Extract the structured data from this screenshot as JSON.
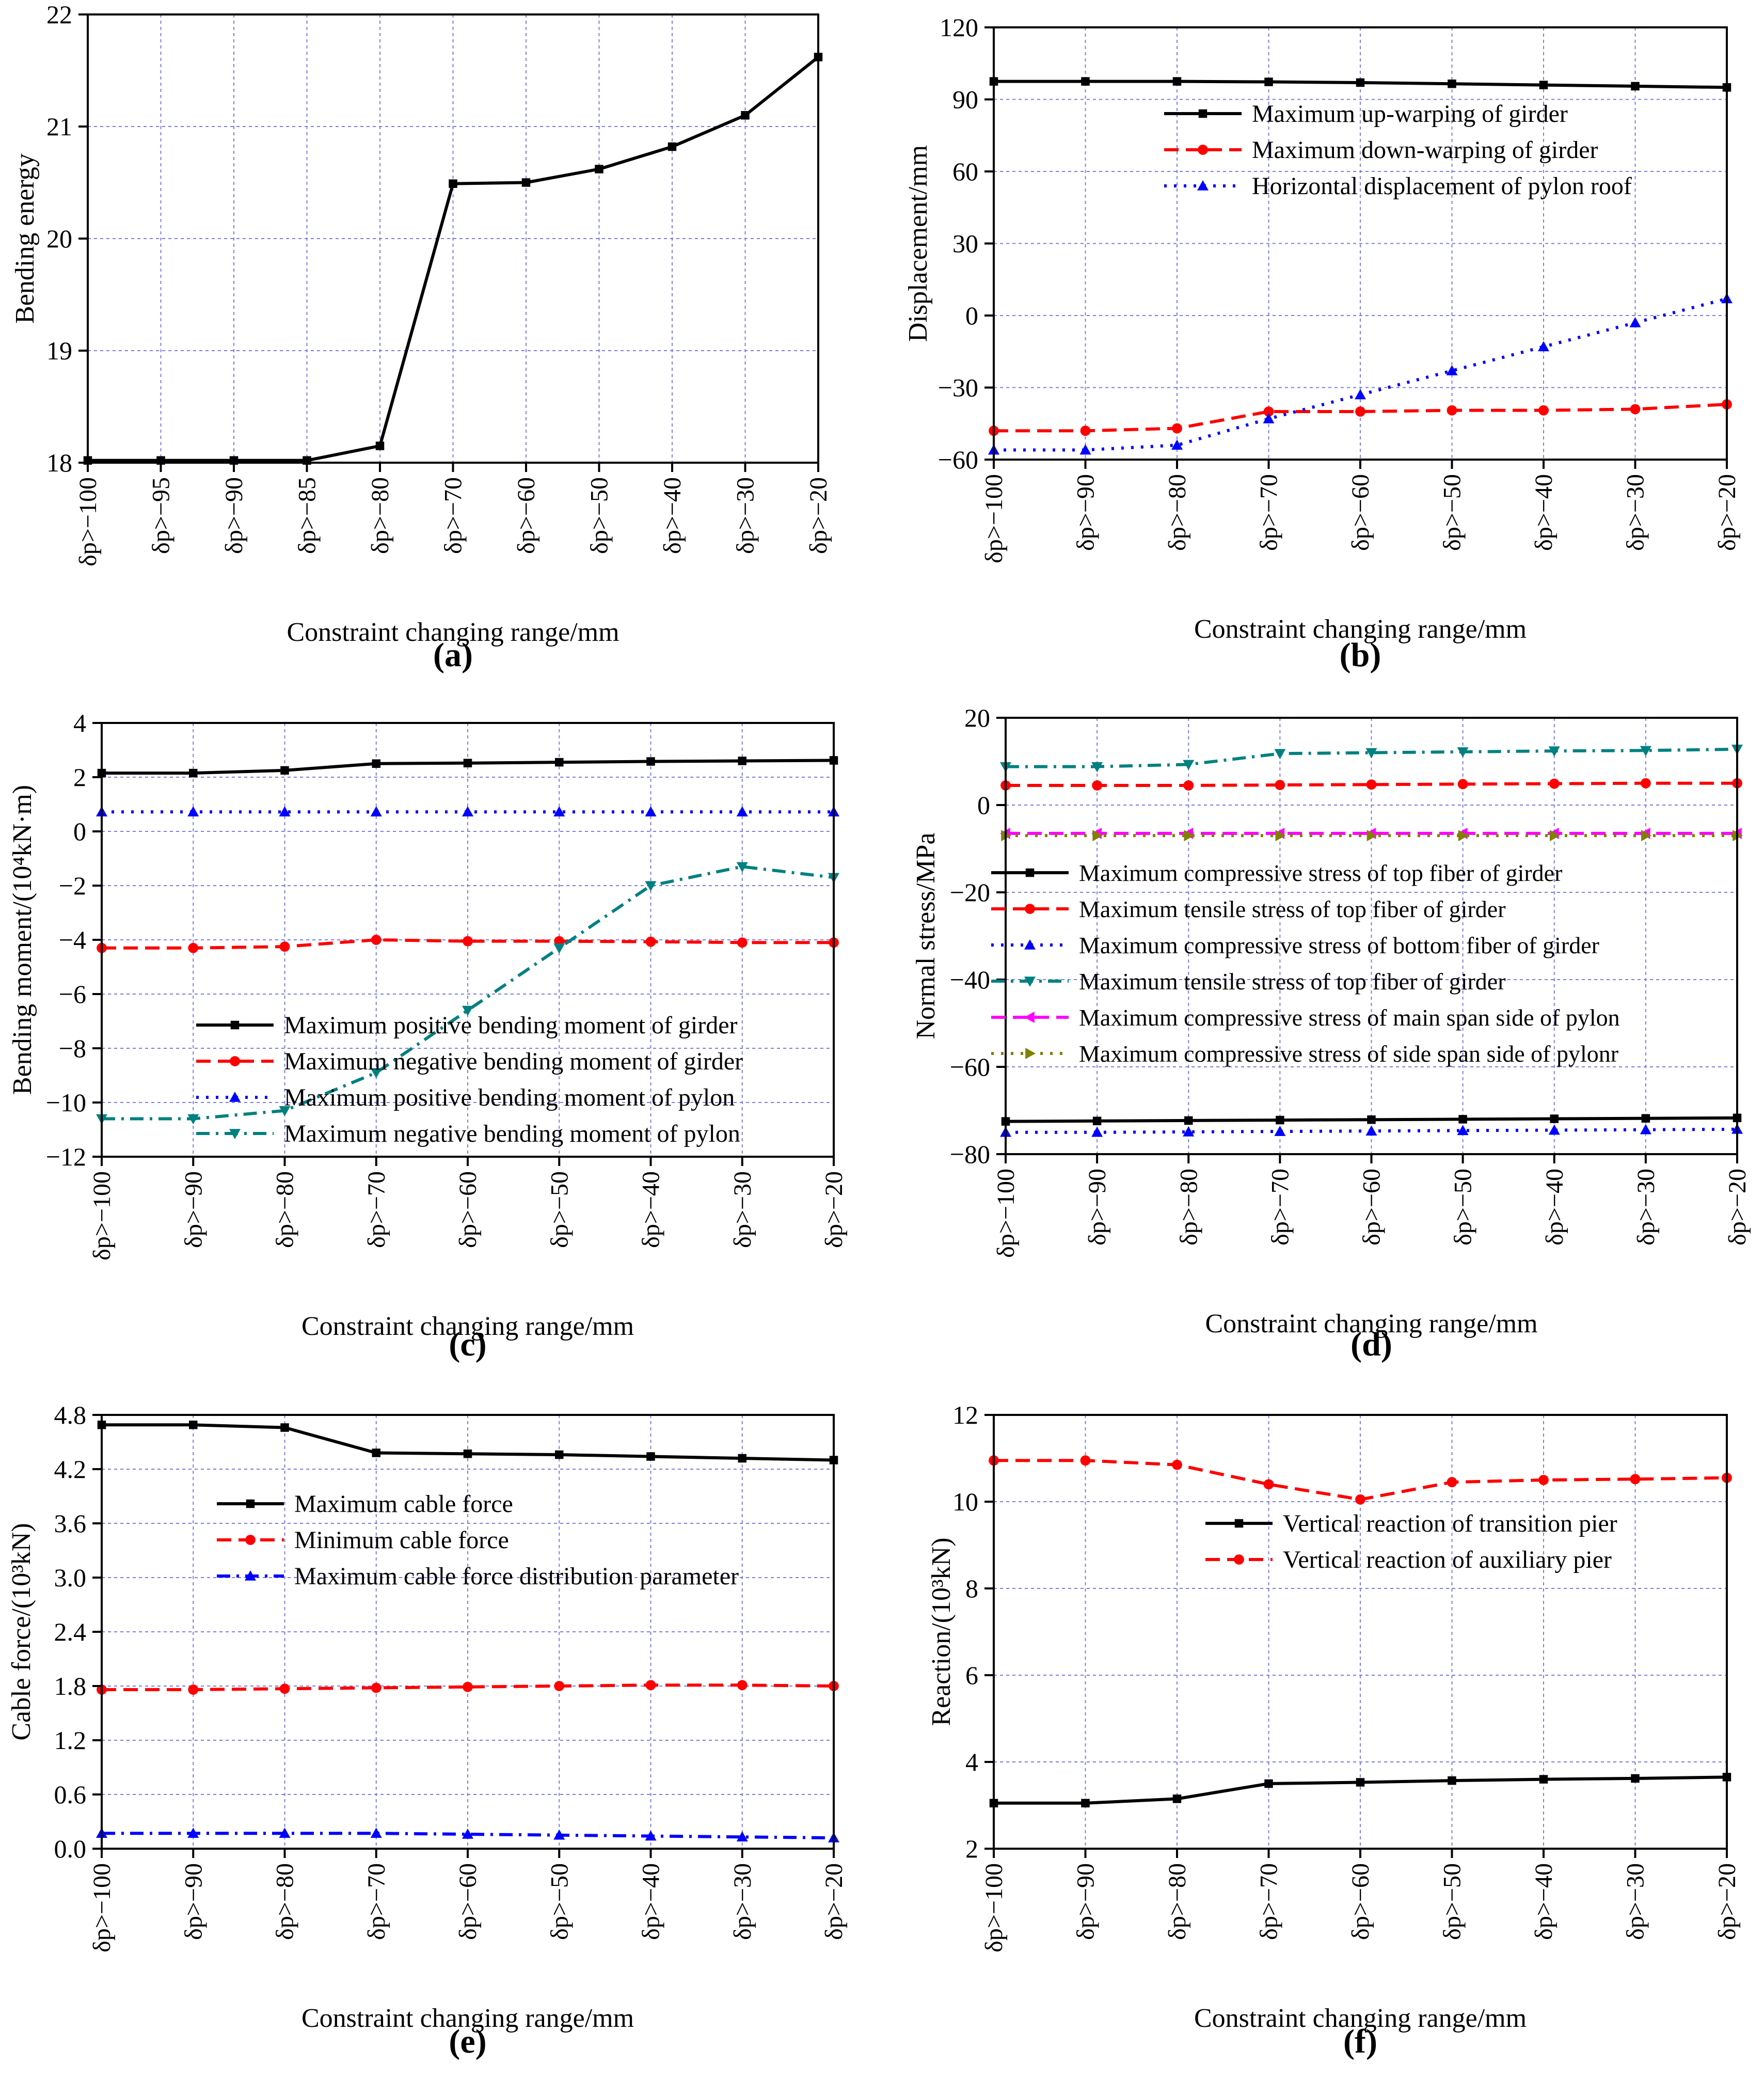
{
  "figure": {
    "panel_labels": [
      "(a)",
      "(b)",
      "(c)",
      "(d)",
      "(e)",
      "(f)"
    ]
  },
  "chart_data": [
    {
      "type": "line",
      "panel": "(a)",
      "xlabel": "Constraint changing range/mm",
      "ylabel": "Bending energy",
      "categories": [
        "δp>−100",
        "δp>−95",
        "δp>−90",
        "δp>−85",
        "δp>−80",
        "δp>−70",
        "δp>−60",
        "δp>−50",
        "δp>−40",
        "δp>−30",
        "δp>−20"
      ],
      "ylim": [
        18,
        22
      ],
      "yticks": [
        18,
        19,
        20,
        21,
        22
      ],
      "yticklabels": [
        "18",
        "19",
        "20",
        "21",
        "22"
      ],
      "grid": true,
      "legend": "none",
      "series": [
        {
          "name": "",
          "color": "#000000",
          "dash": "solid",
          "marker": "square",
          "values": [
            18.02,
            18.02,
            18.02,
            18.02,
            18.15,
            20.49,
            20.5,
            20.62,
            20.82,
            21.1,
            21.62
          ]
        }
      ]
    },
    {
      "type": "line",
      "panel": "(b)",
      "xlabel": "Constraint changing range/mm",
      "ylabel": "Displacement/mm",
      "categories": [
        "δp>−100",
        "δp>−90",
        "δp>−80",
        "δp>−70",
        "δp>−60",
        "δp>−50",
        "δp>−40",
        "δp>−30",
        "δp>−20"
      ],
      "ylim": [
        -60,
        120
      ],
      "yticks": [
        -60,
        -30,
        0,
        30,
        60,
        90,
        120
      ],
      "yticklabels": [
        "−60",
        "−30",
        "0",
        "30",
        "60",
        "90",
        "120"
      ],
      "grid": true,
      "legend": "top-right",
      "series": [
        {
          "name": "Maximum up-warping of girder",
          "color": "#000000",
          "dash": "solid",
          "marker": "square",
          "values": [
            97.5,
            97.5,
            97.5,
            97.3,
            97.0,
            96.5,
            96.0,
            95.5,
            95.0
          ]
        },
        {
          "name": "Maximum down-warping of girder",
          "color": "#ff0000",
          "dash": "dashed",
          "marker": "circle",
          "values": [
            -48,
            -48,
            -47,
            -40,
            -40,
            -39.5,
            -39.5,
            -39,
            -37
          ]
        },
        {
          "name": "Horizontal displacement of pylon roof",
          "color": "#0000ff",
          "dash": "dotted",
          "marker": "triangle-up",
          "values": [
            -56,
            -56,
            -54,
            -43,
            -33,
            -23,
            -13,
            -3,
            7
          ]
        }
      ]
    },
    {
      "type": "line",
      "panel": "(c)",
      "xlabel": "Constraint changing range/mm",
      "ylabel": "Bending moment/(10⁴kN·m)",
      "categories": [
        "δp>−100",
        "δp>−90",
        "δp>−80",
        "δp>−70",
        "δp>−60",
        "δp>−50",
        "δp>−40",
        "δp>−30",
        "δp>−20"
      ],
      "ylim": [
        -12,
        4
      ],
      "yticks": [
        -12,
        -10,
        -8,
        -6,
        -4,
        -2,
        0,
        2,
        4
      ],
      "yticklabels": [
        "−12",
        "−10",
        "−8",
        "−6",
        "−4",
        "−2",
        "0",
        "2",
        "4"
      ],
      "grid": true,
      "legend": "bottom-right",
      "series": [
        {
          "name": "Maximum positive bending moment of girder",
          "color": "#000000",
          "dash": "solid",
          "marker": "square",
          "values": [
            2.15,
            2.15,
            2.25,
            2.5,
            2.52,
            2.55,
            2.58,
            2.6,
            2.62
          ]
        },
        {
          "name": "Maximum negative bending moment of girder",
          "color": "#ff0000",
          "dash": "dashed",
          "marker": "circle",
          "values": [
            -4.3,
            -4.3,
            -4.25,
            -4.0,
            -4.05,
            -4.05,
            -4.07,
            -4.1,
            -4.1
          ]
        },
        {
          "name": "Maximum positive bending moment of pylon",
          "color": "#0000ff",
          "dash": "dotted",
          "marker": "triangle-up",
          "values": [
            0.72,
            0.72,
            0.72,
            0.72,
            0.72,
            0.72,
            0.72,
            0.72,
            0.72
          ]
        },
        {
          "name": "Maximum negative bending moment of pylon",
          "color": "#008080",
          "dash": "dashdot",
          "marker": "triangle-down",
          "values": [
            -10.6,
            -10.6,
            -10.3,
            -8.9,
            -6.6,
            -4.3,
            -2.0,
            -1.3,
            -1.7
          ]
        }
      ]
    },
    {
      "type": "line",
      "panel": "(d)",
      "xlabel": "Constraint changing range/mm",
      "ylabel": "Normal stress/MPa",
      "categories": [
        "δp>−100",
        "δp>−90",
        "δp>−80",
        "δp>−70",
        "δp>−60",
        "δp>−50",
        "δp>−40",
        "δp>−30",
        "δp>−20"
      ],
      "ylim": [
        -80,
        20
      ],
      "yticks": [
        -80,
        -60,
        -40,
        -20,
        0,
        20
      ],
      "yticklabels": [
        "−80",
        "−60",
        "−40",
        "−20",
        "0",
        "20"
      ],
      "grid": true,
      "legend": "center-right",
      "series": [
        {
          "name": "Maximum compressive stress of top fiber of girder",
          "color": "#000000",
          "dash": "solid",
          "marker": "square",
          "values": [
            -72.5,
            -72.4,
            -72.3,
            -72.2,
            -72.1,
            -72.0,
            -71.9,
            -71.8,
            -71.7
          ]
        },
        {
          "name": "Maximum tensile stress of top fiber of girder",
          "color": "#ff0000",
          "dash": "dashed",
          "marker": "circle",
          "values": [
            4.5,
            4.5,
            4.5,
            4.6,
            4.7,
            4.8,
            4.9,
            5.0,
            5.0
          ]
        },
        {
          "name": "Maximum compressive stress of bottom fiber of girder",
          "color": "#0000ff",
          "dash": "dotted",
          "marker": "triangle-up",
          "values": [
            -75.0,
            -75.0,
            -74.9,
            -74.8,
            -74.7,
            -74.6,
            -74.5,
            -74.4,
            -74.3
          ]
        },
        {
          "name": "Maximum tensile stress of top fiber of girder",
          "color": "#008080",
          "dash": "dashdot",
          "marker": "triangle-down",
          "values": [
            8.8,
            8.8,
            9.3,
            11.8,
            12.0,
            12.2,
            12.4,
            12.5,
            12.8
          ]
        },
        {
          "name": "Maximum compressive stress of main span side of pylon",
          "color": "#ff00ff",
          "dash": "dashed",
          "marker": "triangle-left",
          "values": [
            -6.5,
            -6.5,
            -6.5,
            -6.5,
            -6.5,
            -6.5,
            -6.5,
            -6.5,
            -6.5
          ]
        },
        {
          "name": "Maximum compressive stress of side span side of pylonr",
          "color": "#808000",
          "dash": "dotted",
          "marker": "triangle-right",
          "values": [
            -7.0,
            -7.0,
            -7.0,
            -7.0,
            -7.0,
            -7.0,
            -7.0,
            -7.0,
            -7.0
          ]
        }
      ]
    },
    {
      "type": "line",
      "panel": "(e)",
      "xlabel": "Constraint changing range/mm",
      "ylabel": "Cable force/(10³kN)",
      "categories": [
        "δp>−100",
        "δp>−90",
        "δp>−80",
        "δp>−70",
        "δp>−60",
        "δp>−50",
        "δp>−40",
        "δp>−30",
        "δp>−20"
      ],
      "ylim": [
        0,
        4.8
      ],
      "yticks": [
        0,
        0.6,
        1.2,
        1.8,
        2.4,
        3.0,
        3.6,
        4.2,
        4.8
      ],
      "yticklabels": [
        "0.0",
        "0.6",
        "1.2",
        "1.8",
        "2.4",
        "3.0",
        "3.6",
        "4.2",
        "4.8"
      ],
      "grid": true,
      "legend": "top-right",
      "series": [
        {
          "name": "Maximum cable force",
          "color": "#000000",
          "dash": "solid",
          "marker": "square",
          "values": [
            4.69,
            4.69,
            4.66,
            4.38,
            4.37,
            4.36,
            4.34,
            4.32,
            4.3
          ]
        },
        {
          "name": "Minimum cable force",
          "color": "#ff0000",
          "dash": "dashed",
          "marker": "circle",
          "values": [
            1.76,
            1.76,
            1.77,
            1.78,
            1.79,
            1.8,
            1.81,
            1.81,
            1.8
          ]
        },
        {
          "name": "Maximum cable force distribution parameter",
          "color": "#0000ff",
          "dash": "dashdot",
          "marker": "triangle-up",
          "values": [
            0.17,
            0.17,
            0.17,
            0.17,
            0.16,
            0.15,
            0.14,
            0.13,
            0.12
          ]
        }
      ]
    },
    {
      "type": "line",
      "panel": "(f)",
      "xlabel": "Constraint changing range/mm",
      "ylabel": "Reaction/(10³kN)",
      "categories": [
        "δp>−100",
        "δp>−90",
        "δp>−80",
        "δp>−70",
        "δp>−60",
        "δp>−50",
        "δp>−40",
        "δp>−30",
        "δp>−20"
      ],
      "ylim": [
        2,
        12
      ],
      "yticks": [
        2,
        4,
        6,
        8,
        10,
        12
      ],
      "yticklabels": [
        "2",
        "4",
        "6",
        "8",
        "10",
        "12"
      ],
      "grid": true,
      "legend": "top-right",
      "series": [
        {
          "name": "Vertical reaction of transition pier",
          "color": "#000000",
          "dash": "solid",
          "marker": "square",
          "values": [
            3.05,
            3.05,
            3.15,
            3.5,
            3.53,
            3.57,
            3.6,
            3.62,
            3.65
          ]
        },
        {
          "name": "Vertical reaction of auxiliary pier",
          "color": "#ff0000",
          "dash": "dashed",
          "marker": "circle",
          "values": [
            10.95,
            10.95,
            10.85,
            10.4,
            10.05,
            10.45,
            10.5,
            10.52,
            10.55
          ]
        }
      ]
    }
  ]
}
